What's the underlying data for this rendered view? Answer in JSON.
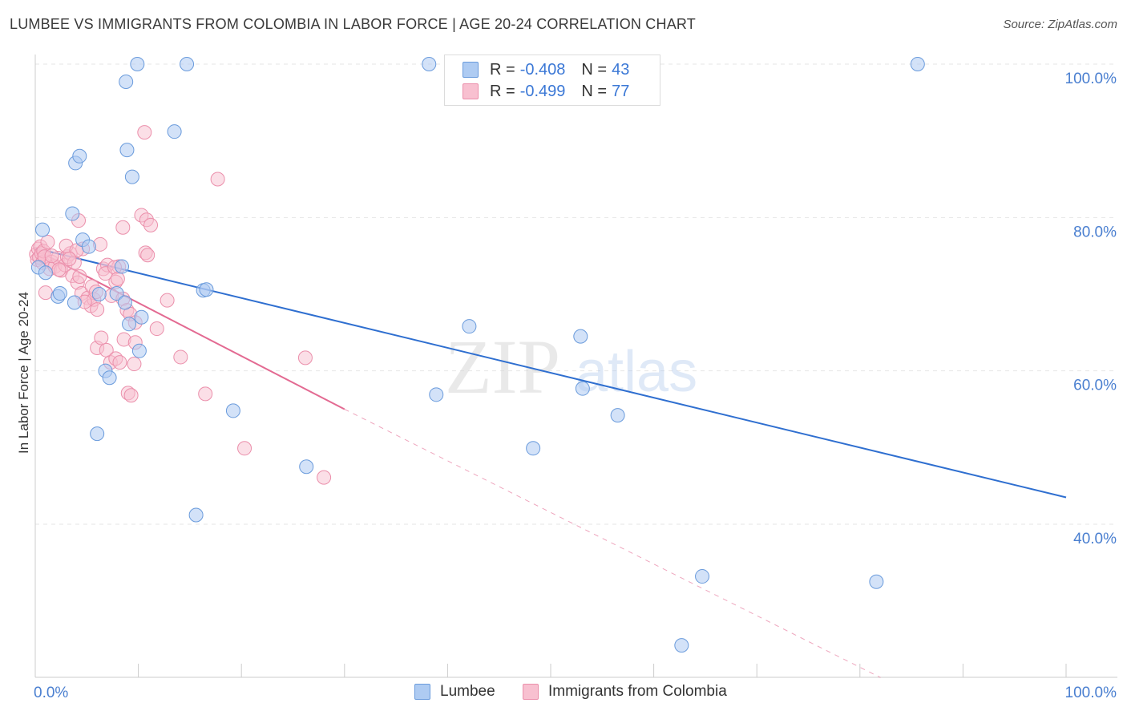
{
  "title": "LUMBEE VS IMMIGRANTS FROM COLOMBIA IN LABOR FORCE | AGE 20-24 CORRELATION CHART",
  "source": "Source: ZipAtlas.com",
  "watermark": {
    "zip": "ZIP",
    "atlas": "atlas"
  },
  "legend": {
    "r_label": "R =",
    "n_label": "N =",
    "series": [
      {
        "name": "Lumbee",
        "r": "-0.408",
        "n": "43"
      },
      {
        "name": "Immigrants from Colombia",
        "r": "-0.499",
        "n": "77"
      }
    ]
  },
  "colors": {
    "lumbee_fill": "#aecbf2",
    "lumbee_stroke": "#6a9bdc",
    "lumbee_line": "#2f6fd0",
    "colombia_fill": "#f8c0d0",
    "colombia_stroke": "#eb8fab",
    "colombia_line": "#e36a92",
    "tick_text": "#4a7fd0",
    "grid": "#e6e6e6"
  },
  "chart_data": {
    "type": "scatter",
    "xlabel": "",
    "ylabel": "In Labor Force | Age 20-24",
    "xlim": [
      0,
      100
    ],
    "ylim": [
      20,
      101
    ],
    "x_tick_labels": [
      "0.0%",
      "100.0%"
    ],
    "y_ticks": [
      40,
      60,
      80,
      100
    ],
    "y_tick_labels": [
      "40.0%",
      "60.0%",
      "80.0%",
      "100.0%"
    ],
    "series": [
      {
        "name": "Lumbee",
        "trend": {
          "x0": 0,
          "y0": 76.0,
          "x1": 100,
          "y1": 43.5
        },
        "points": [
          [
            0.7,
            78.4
          ],
          [
            3.6,
            80.5
          ],
          [
            3.9,
            87.1
          ],
          [
            4.3,
            88.0
          ],
          [
            4.6,
            77.1
          ],
          [
            5.2,
            76.2
          ],
          [
            2.2,
            69.7
          ],
          [
            2.4,
            70.1
          ],
          [
            3.8,
            68.9
          ],
          [
            6.2,
            70.0
          ],
          [
            7.9,
            70.1
          ],
          [
            8.4,
            73.6
          ],
          [
            8.7,
            68.9
          ],
          [
            9.1,
            66.1
          ],
          [
            10.3,
            67.0
          ],
          [
            10.1,
            62.6
          ],
          [
            6.8,
            60.0
          ],
          [
            7.2,
            59.1
          ],
          [
            6.0,
            51.8
          ],
          [
            9.9,
            100.0
          ],
          [
            14.7,
            100.0
          ],
          [
            8.8,
            97.7
          ],
          [
            8.9,
            88.8
          ],
          [
            9.4,
            85.3
          ],
          [
            13.5,
            91.2
          ],
          [
            16.3,
            70.5
          ],
          [
            16.6,
            70.6
          ],
          [
            19.2,
            54.8
          ],
          [
            15.6,
            41.2
          ],
          [
            26.3,
            47.5
          ],
          [
            38.2,
            100.0
          ],
          [
            38.9,
            56.9
          ],
          [
            42.1,
            65.8
          ],
          [
            48.3,
            49.9
          ],
          [
            52.9,
            64.5
          ],
          [
            53.1,
            57.7
          ],
          [
            56.5,
            54.2
          ],
          [
            64.7,
            33.2
          ],
          [
            62.7,
            24.2
          ],
          [
            81.6,
            32.5
          ],
          [
            85.6,
            100.0
          ],
          [
            0.3,
            73.5
          ],
          [
            1.0,
            72.8
          ]
        ]
      },
      {
        "name": "Immigrants from Colombia",
        "trend": {
          "x0": 0,
          "y0": 75.8,
          "x1": 30,
          "y1": 55.0
        },
        "trend_dashed": {
          "x0": 30,
          "y0": 55.0,
          "x1": 82,
          "y1": 20.0
        },
        "points": [
          [
            0.1,
            75.2
          ],
          [
            0.2,
            74.5
          ],
          [
            0.3,
            75.9
          ],
          [
            0.4,
            74.8
          ],
          [
            0.5,
            76.2
          ],
          [
            0.6,
            75.3
          ],
          [
            0.7,
            74.1
          ],
          [
            0.8,
            75.6
          ],
          [
            0.9,
            74.9
          ],
          [
            1.0,
            70.2
          ],
          [
            1.2,
            76.8
          ],
          [
            1.4,
            73.3
          ],
          [
            1.6,
            74.2
          ],
          [
            1.9,
            73.6
          ],
          [
            2.2,
            74.7
          ],
          [
            2.5,
            73.1
          ],
          [
            2.9,
            73.8
          ],
          [
            3.1,
            74.9
          ],
          [
            3.4,
            75.3
          ],
          [
            3.6,
            72.4
          ],
          [
            3.8,
            74.1
          ],
          [
            4.1,
            71.5
          ],
          [
            4.3,
            72.3
          ],
          [
            4.5,
            70.1
          ],
          [
            4.2,
            79.6
          ],
          [
            4.6,
            75.9
          ],
          [
            5.1,
            69.5
          ],
          [
            5.4,
            68.5
          ],
          [
            5.7,
            69.3
          ],
          [
            6.0,
            68.0
          ],
          [
            6.3,
            76.5
          ],
          [
            6.6,
            73.3
          ],
          [
            7.0,
            73.8
          ],
          [
            7.4,
            69.8
          ],
          [
            7.8,
            71.6
          ],
          [
            8.1,
            73.6
          ],
          [
            8.5,
            69.4
          ],
          [
            8.9,
            67.9
          ],
          [
            9.2,
            67.4
          ],
          [
            9.7,
            66.3
          ],
          [
            6.0,
            63.0
          ],
          [
            6.4,
            64.3
          ],
          [
            6.9,
            62.7
          ],
          [
            7.3,
            61.1
          ],
          [
            7.8,
            61.6
          ],
          [
            8.2,
            61.1
          ],
          [
            8.6,
            64.1
          ],
          [
            9.7,
            63.7
          ],
          [
            9.6,
            60.9
          ],
          [
            9.0,
            57.1
          ],
          [
            9.3,
            56.8
          ],
          [
            8.5,
            78.7
          ],
          [
            10.3,
            80.3
          ],
          [
            10.8,
            79.7
          ],
          [
            11.2,
            79.0
          ],
          [
            10.6,
            91.1
          ],
          [
            10.7,
            75.4
          ],
          [
            10.9,
            75.1
          ],
          [
            11.8,
            65.5
          ],
          [
            12.8,
            69.2
          ],
          [
            14.1,
            61.8
          ],
          [
            16.5,
            57.0
          ],
          [
            17.7,
            85.0
          ],
          [
            20.3,
            49.9
          ],
          [
            26.2,
            61.7
          ],
          [
            28.0,
            46.1
          ],
          [
            3.0,
            76.3
          ],
          [
            4.0,
            75.7
          ],
          [
            5.5,
            71.0
          ],
          [
            6.8,
            72.7
          ],
          [
            7.7,
            73.5
          ],
          [
            1.6,
            75.0
          ],
          [
            2.3,
            73.2
          ],
          [
            3.3,
            74.6
          ],
          [
            4.8,
            69.0
          ],
          [
            5.9,
            70.3
          ],
          [
            8.0,
            72.0
          ]
        ]
      }
    ]
  }
}
